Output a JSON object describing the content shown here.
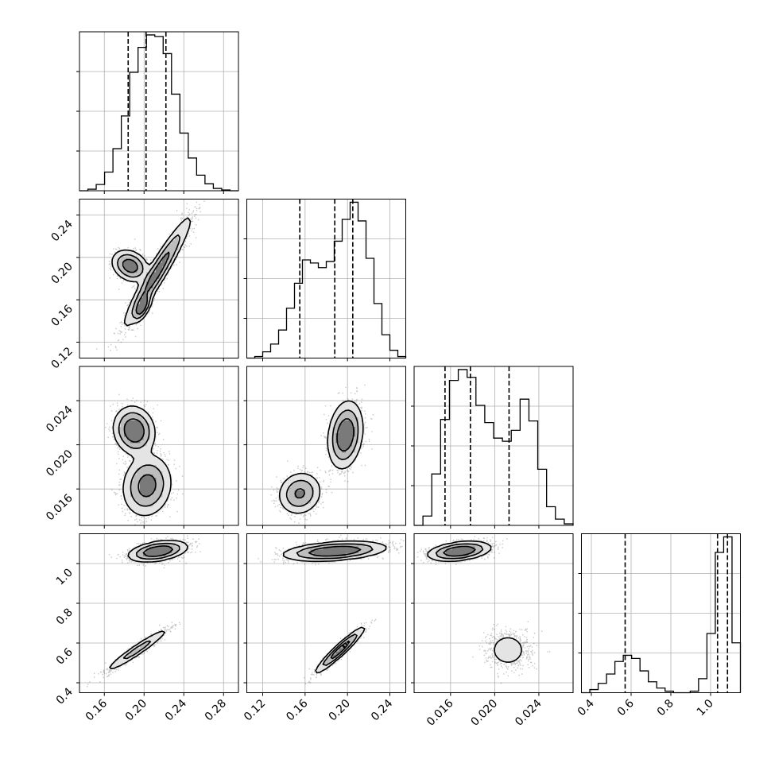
{
  "chart_data": {
    "type": "corner",
    "title": "",
    "grid": true,
    "parameters": [
      {
        "ticks": [
          0.16,
          0.2,
          0.24,
          0.28
        ],
        "tick_labels": [
          "0.16",
          "0.20",
          "0.24",
          "0.28"
        ],
        "range": [
          0.135,
          0.295
        ],
        "quantiles": [
          0.184,
          0.202,
          0.222
        ],
        "hist_bins": [
          0.0,
          0.01,
          0.04,
          0.12,
          0.27,
          0.48,
          0.76,
          0.92,
          1.0,
          0.99,
          0.88,
          0.62,
          0.37,
          0.21,
          0.1,
          0.045,
          0.015,
          0.005,
          0.0
        ]
      },
      {
        "ticks": [
          0.12,
          0.16,
          0.2,
          0.24
        ],
        "tick_labels": [
          "0.12",
          "0.16",
          "0.20",
          "0.24"
        ],
        "range": [
          0.105,
          0.255
        ],
        "quantiles": [
          0.155,
          0.188,
          0.205
        ],
        "hist_bins": [
          0.0,
          0.01,
          0.04,
          0.09,
          0.18,
          0.32,
          0.48,
          0.63,
          0.61,
          0.58,
          0.62,
          0.75,
          0.89,
          1.0,
          0.88,
          0.64,
          0.35,
          0.15,
          0.05,
          0.01
        ]
      },
      {
        "ticks": [
          0.016,
          0.02,
          0.024
        ],
        "tick_labels": [
          "0.016",
          "0.020",
          "0.024"
        ],
        "range": [
          0.0127,
          0.0271
        ],
        "quantiles": [
          0.0155,
          0.0178,
          0.0213
        ],
        "hist_bins": [
          0.0,
          0.06,
          0.33,
          0.68,
          0.93,
          1.0,
          0.95,
          0.77,
          0.66,
          0.56,
          0.54,
          0.61,
          0.81,
          0.67,
          0.36,
          0.12,
          0.04,
          0.01
        ]
      },
      {
        "ticks": [
          0.4,
          0.6,
          0.8,
          1.0
        ],
        "tick_labels": [
          "0.4",
          "0.6",
          "0.8",
          "1.0"
        ],
        "range": [
          0.35,
          1.15
        ],
        "quantiles": [
          0.57,
          1.035,
          1.085
        ],
        "hist_bins": [
          0.0,
          0.02,
          0.06,
          0.12,
          0.2,
          0.24,
          0.22,
          0.14,
          0.07,
          0.03,
          0.01,
          0.0,
          0.0,
          0.01,
          0.09,
          0.38,
          0.9,
          1.0,
          0.32
        ]
      }
    ],
    "pairs": [
      {
        "x": 0,
        "y": 1,
        "modes": [
          {
            "cx": 0.2135,
            "cy": 0.1865,
            "sx": 0.016,
            "sy": 0.0245,
            "rho": 0.95,
            "w": 0.58
          },
          {
            "cx": 0.198,
            "cy": 0.153,
            "sx": 0.0045,
            "sy": 0.0065,
            "rho": 0.6,
            "w": 0.12
          },
          {
            "cx": 0.186,
            "cy": 0.192,
            "sx": 0.0085,
            "sy": 0.007,
            "rho": -0.25,
            "w": 0.3
          }
        ]
      },
      {
        "x": 0,
        "y": 2,
        "modes": [
          {
            "cx": 0.203,
            "cy": 0.0163,
            "sx": 0.0115,
            "sy": 0.0013,
            "rho": 0.1,
            "w": 0.55
          },
          {
            "cx": 0.19,
            "cy": 0.0213,
            "sx": 0.0095,
            "sy": 0.001,
            "rho": -0.1,
            "w": 0.45
          }
        ]
      },
      {
        "x": 1,
        "y": 2,
        "modes": [
          {
            "cx": 0.155,
            "cy": 0.0156,
            "sx": 0.0095,
            "sy": 0.0009,
            "rho": 0.1,
            "w": 0.35
          },
          {
            "cx": 0.198,
            "cy": 0.0209,
            "sx": 0.0075,
            "sy": 0.0014,
            "rho": 0.2,
            "w": 0.65
          }
        ]
      },
      {
        "x": 0,
        "y": 3,
        "modes": [
          {
            "cx": 0.214,
            "cy": 1.062,
            "sx": 0.0135,
            "sy": 0.024,
            "rho": 0.4,
            "w": 0.75
          },
          {
            "cx": 0.193,
            "cy": 0.565,
            "sx": 0.016,
            "sy": 0.055,
            "rho": 0.96,
            "w": 0.25
          }
        ]
      },
      {
        "x": 1,
        "y": 3,
        "modes": [
          {
            "cx": 0.188,
            "cy": 1.062,
            "sx": 0.022,
            "sy": 0.022,
            "rho": 0.35,
            "w": 0.75
          },
          {
            "cx": 0.193,
            "cy": 0.565,
            "sx": 0.011,
            "sy": 0.055,
            "rho": 0.95,
            "w": 0.25
          }
        ]
      },
      {
        "x": 2,
        "y": 3,
        "modes": [
          {
            "cx": 0.0168,
            "cy": 1.062,
            "sx": 0.0013,
            "sy": 0.022,
            "rho": 0.35,
            "w": 0.75
          },
          {
            "cx": 0.0212,
            "cy": 0.565,
            "sx": 0.001,
            "sy": 0.05,
            "rho": 0.0,
            "w": 0.25
          }
        ]
      }
    ]
  }
}
